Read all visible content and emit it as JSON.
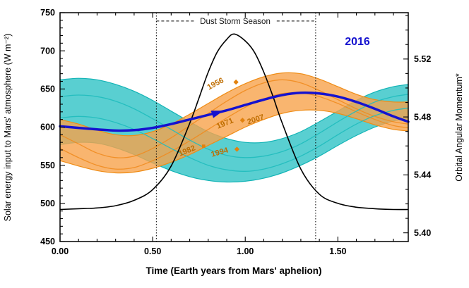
{
  "chart_data": {
    "type": "line",
    "title": "",
    "xlabel": "Time (Earth years from Mars' aphelion)",
    "ylabel_left": "Solar energy input to Mars' atmosphere  (W m⁻²)",
    "ylabel_right": "Orbital Angular Momentum*",
    "x_range": [
      0,
      1.88
    ],
    "y_left_range": [
      450,
      750
    ],
    "y_right_range": [
      5.394,
      5.552
    ],
    "x_tick_labels": [
      "0.00",
      "0.50",
      "1.00",
      "1.50"
    ],
    "x_tick_values": [
      0,
      0.5,
      1.0,
      1.5
    ],
    "x_minor_step": 0.1,
    "y_left_tick_labels": [
      "450",
      "500",
      "550",
      "600",
      "650",
      "700",
      "750"
    ],
    "y_left_tick_values": [
      450,
      500,
      550,
      600,
      650,
      700,
      750
    ],
    "y_left_minor_step": 10,
    "y_right_tick_labels": [
      "5.40",
      "5.44",
      "5.48",
      "5.52"
    ],
    "y_right_tick_values": [
      5.4,
      5.44,
      5.48,
      5.52
    ],
    "y_right_minor_step": 0.01,
    "grid": false,
    "colors": {
      "black": "#000000",
      "blue": "#1512cf",
      "orange_fill": "#f7a24b",
      "orange_edge": "#ef8c15",
      "cyan_fill": "#3cc7c9",
      "cyan_edge": "#12b4b6",
      "year_label": "#bf6d00",
      "marker": "#e2820e"
    },
    "dust_storm": {
      "label": "Dust Storm Season",
      "x_start": 0.52,
      "x_end": 1.38,
      "y": 739,
      "gap_start": 0.725,
      "gap_end": 1.17
    },
    "legend_2016": {
      "label": "2016",
      "x": 1.6,
      "y_left": 712
    },
    "arrow": {
      "x": 0.85,
      "y": 619,
      "angle": -18
    },
    "year_labels": [
      {
        "text": "1956",
        "x": 0.845,
        "y": 654,
        "rotate": -28,
        "marker": {
          "shape": "diamond",
          "x": 0.95,
          "y": 659
        }
      },
      {
        "text": "1971",
        "x": 0.895,
        "y": 602,
        "rotate": -22,
        "marker": {
          "shape": "diamond",
          "x": 0.985,
          "y": 609
        }
      },
      {
        "text": "2007",
        "x": 1.06,
        "y": 607,
        "rotate": -18,
        "marker": null
      },
      {
        "text": "1982",
        "x": 0.69,
        "y": 566,
        "rotate": -22,
        "marker": {
          "shape": "square",
          "x": 0.775,
          "y": 575
        }
      },
      {
        "text": "1994",
        "x": 0.865,
        "y": 564,
        "rotate": -16,
        "marker": {
          "shape": "diamond",
          "x": 0.955,
          "y": 571
        }
      }
    ],
    "series": [
      {
        "name": "solar-energy-curve",
        "axis": "left",
        "color": "#000000",
        "width": 1.6,
        "x": [
          0,
          0.1,
          0.2,
          0.3,
          0.4,
          0.5,
          0.6,
          0.7,
          0.75,
          0.8,
          0.85,
          0.9,
          0.94,
          1.0,
          1.05,
          1.1,
          1.15,
          1.2,
          1.3,
          1.4,
          1.5,
          1.6,
          1.7,
          1.8,
          1.88
        ],
        "y": [
          492,
          493,
          494,
          497,
          504,
          518,
          549,
          605,
          638,
          672,
          699,
          715,
          722,
          713,
          698,
          672,
          640,
          605,
          545,
          512,
          500,
          495,
          493,
          492,
          492
        ]
      },
      {
        "name": "momentum-2016-curve",
        "axis": "left",
        "color": "#1512cf",
        "width": 3.5,
        "x": [
          0,
          0.1,
          0.2,
          0.3,
          0.4,
          0.5,
          0.6,
          0.7,
          0.8,
          0.9,
          1.0,
          1.1,
          1.2,
          1.3,
          1.4,
          1.5,
          1.6,
          1.7,
          1.8,
          1.88
        ],
        "y": [
          601,
          599,
          597,
          595.5,
          596,
          599,
          604,
          610,
          616,
          622,
          629,
          636,
          642,
          645,
          644,
          640,
          633,
          624,
          614,
          607
        ]
      }
    ],
    "bands": [
      {
        "name": "cyan-band",
        "fill": "#3cc7c9",
        "edge": "#12b4b6",
        "opacity": 0.85,
        "x": [
          0,
          0.1,
          0.2,
          0.3,
          0.4,
          0.5,
          0.6,
          0.7,
          0.8,
          0.9,
          1.0,
          1.1,
          1.2,
          1.3,
          1.4,
          1.5,
          1.6,
          1.7,
          1.8,
          1.88
        ],
        "upper": [
          662,
          664,
          662,
          656,
          647,
          635,
          621,
          607,
          594,
          585,
          580,
          580,
          585,
          594,
          607,
          621,
          635,
          646,
          653,
          656
        ],
        "lower": [
          577,
          580,
          579,
          573,
          564,
          553,
          543,
          535,
          530,
          528,
          529,
          533,
          540,
          550,
          562,
          576,
          589,
          600,
          608,
          611
        ]
      },
      {
        "name": "orange-band",
        "fill": "#f7a24b",
        "edge": "#ef8c15",
        "opacity": 0.8,
        "x": [
          0,
          0.1,
          0.2,
          0.3,
          0.4,
          0.5,
          0.6,
          0.7,
          0.8,
          0.9,
          1.0,
          1.1,
          1.2,
          1.3,
          1.4,
          1.5,
          1.6,
          1.7,
          1.8,
          1.88
        ],
        "upper": [
          610,
          604,
          596,
          590,
          589,
          594,
          604,
          617,
          631,
          645,
          657,
          666,
          671,
          670,
          663,
          653,
          643,
          636,
          633,
          633
        ],
        "lower": [
          556,
          549,
          543,
          540,
          541,
          546,
          554,
          564,
          576,
          588,
          600,
          610,
          618,
          622,
          622,
          618,
          611,
          603,
          597,
          595
        ]
      }
    ],
    "band_member_lines": [
      {
        "name": "orange-strand-1",
        "color": "#f08c20",
        "x": [
          0,
          0.1,
          0.2,
          0.3,
          0.4,
          0.5,
          0.6,
          0.7,
          0.8,
          0.9,
          1.0,
          1.1,
          1.2,
          1.3,
          1.4,
          1.5,
          1.6,
          1.7,
          1.8,
          1.88
        ],
        "y": [
          590,
          578,
          566,
          560,
          562,
          572,
          586,
          602,
          618,
          634,
          648,
          658,
          662,
          658,
          648,
          636,
          624,
          614,
          607,
          604
        ]
      },
      {
        "name": "orange-strand-2",
        "color": "#f08c20",
        "x": [
          0,
          0.1,
          0.2,
          0.3,
          0.4,
          0.5,
          0.6,
          0.7,
          0.8,
          0.9,
          1.0,
          1.1,
          1.2,
          1.3,
          1.4,
          1.5,
          1.6,
          1.7,
          1.8,
          1.88
        ],
        "y": [
          572,
          560,
          550,
          545,
          547,
          556,
          568,
          582,
          597,
          612,
          626,
          637,
          644,
          645,
          640,
          631,
          620,
          610,
          602,
          599
        ]
      },
      {
        "name": "cyan-strand-1",
        "color": "#20bcbe",
        "x": [
          0,
          0.1,
          0.2,
          0.3,
          0.4,
          0.5,
          0.6,
          0.7,
          0.8,
          0.9,
          1.0,
          1.1,
          1.2,
          1.3,
          1.4,
          1.5,
          1.6,
          1.7,
          1.8,
          1.88
        ],
        "y": [
          640,
          642,
          640,
          634,
          624,
          611,
          597,
          583,
          571,
          563,
          560,
          562,
          568,
          578,
          592,
          607,
          621,
          633,
          640,
          643
        ]
      },
      {
        "name": "cyan-strand-2",
        "color": "#20bcbe",
        "x": [
          0,
          0.1,
          0.2,
          0.3,
          0.4,
          0.5,
          0.6,
          0.7,
          0.8,
          0.9,
          1.0,
          1.1,
          1.2,
          1.3,
          1.4,
          1.5,
          1.6,
          1.7,
          1.8,
          1.88
        ],
        "y": [
          612,
          614,
          612,
          606,
          597,
          585,
          572,
          560,
          550,
          544,
          542,
          545,
          552,
          562,
          575,
          590,
          604,
          615,
          622,
          625
        ]
      }
    ]
  }
}
